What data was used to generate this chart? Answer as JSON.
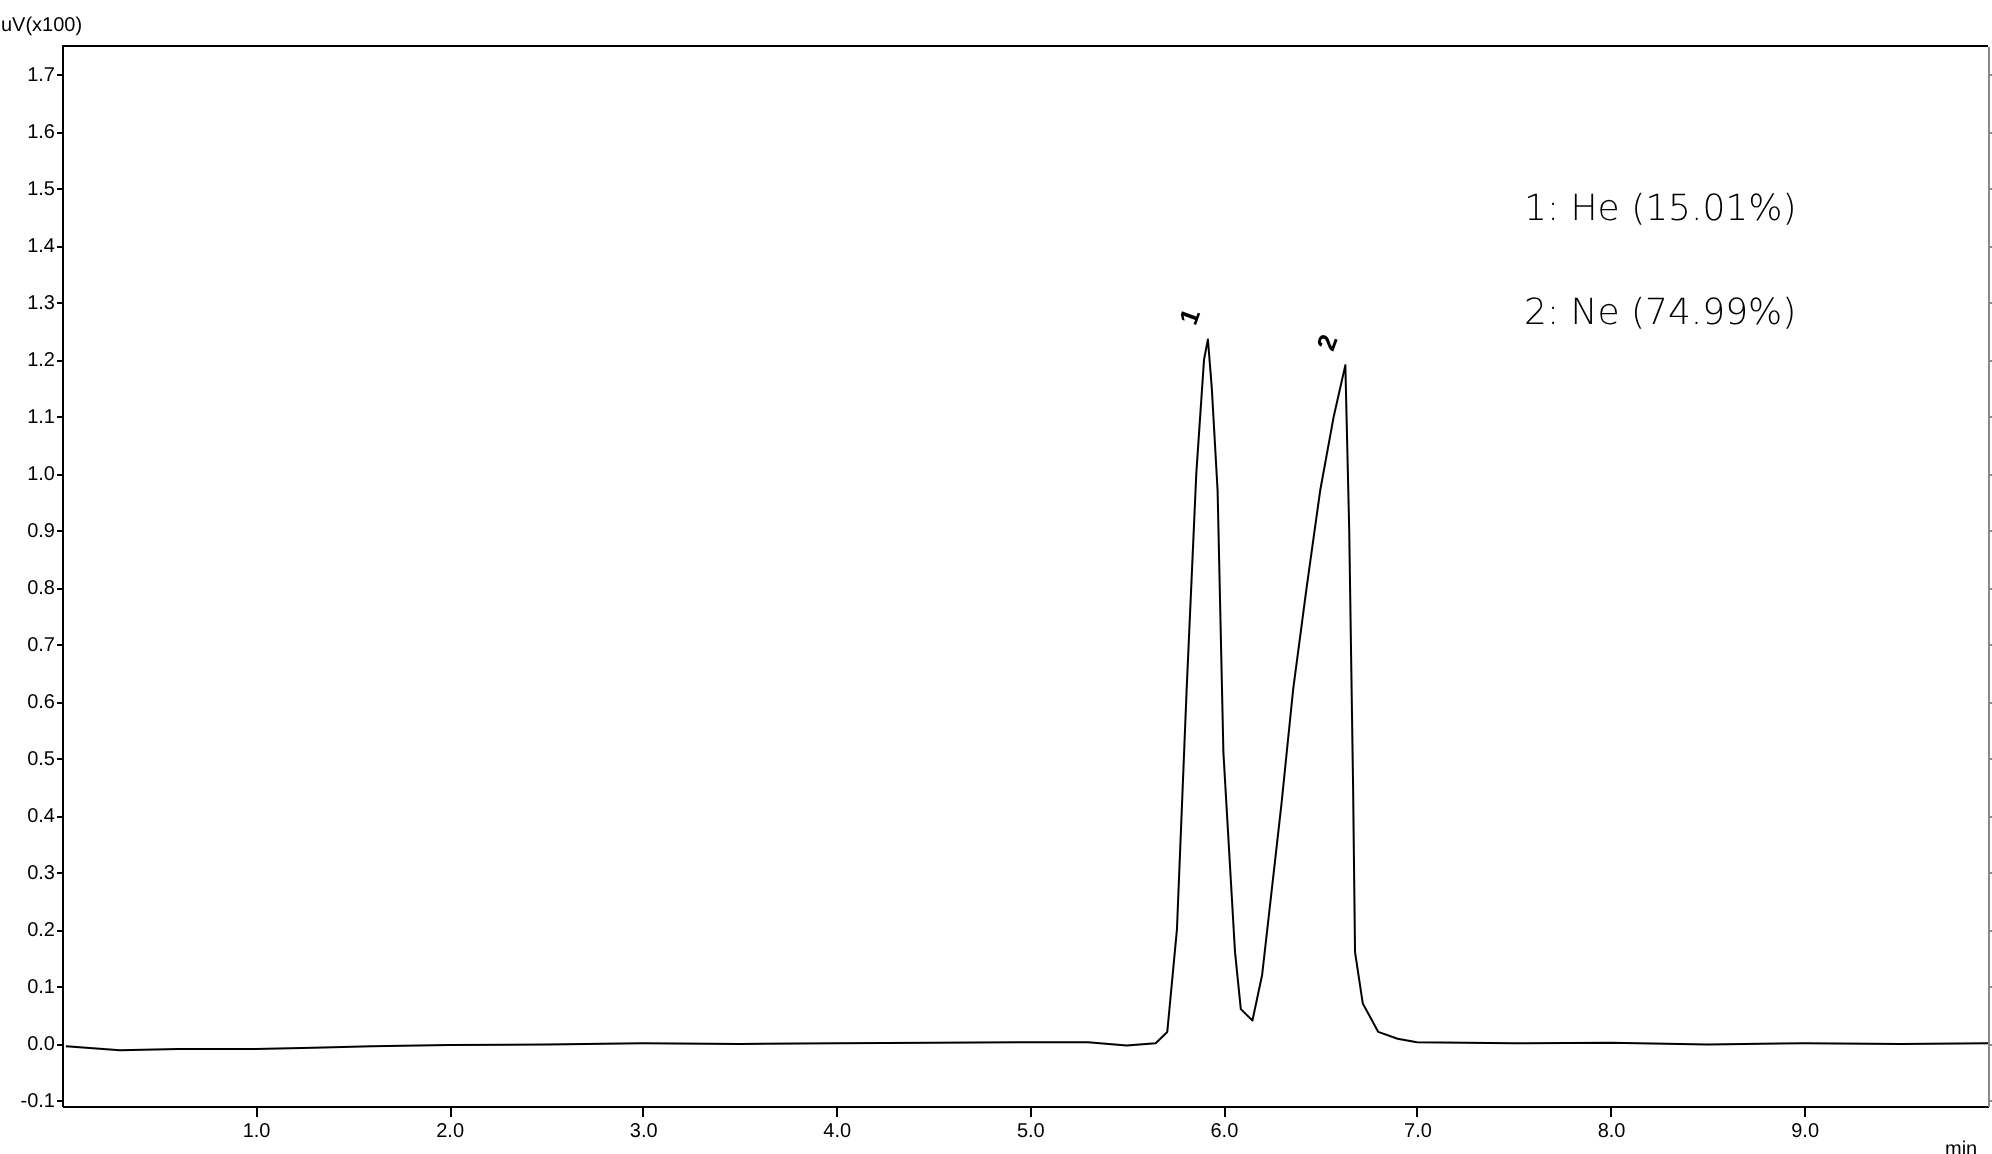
{
  "chart_data": {
    "type": "line",
    "xlabel": "min",
    "ylabel": "uV(x100)",
    "x": [
      0.02,
      0.3,
      0.6,
      1.0,
      1.3,
      1.6,
      2.0,
      2.5,
      3.0,
      3.5,
      4.0,
      4.5,
      5.0,
      5.3,
      5.5,
      5.65,
      5.71,
      5.76,
      5.81,
      5.86,
      5.9,
      5.92,
      5.94,
      5.97,
      6.0,
      6.06,
      6.09,
      6.15,
      6.2,
      6.3,
      6.36,
      6.43,
      6.5,
      6.57,
      6.63,
      6.65,
      6.67,
      6.68,
      6.72,
      6.8,
      6.9,
      7.0,
      7.5,
      8.0,
      8.5,
      9.0,
      9.5,
      9.95
    ],
    "series": [
      {
        "color": "#000000",
        "values": [
          -0.005,
          -0.012,
          -0.01,
          -0.01,
          -0.008,
          -0.005,
          -0.003,
          -0.002,
          0.0,
          -0.001,
          0.0,
          0.001,
          0.002,
          0.002,
          -0.004,
          0.0,
          0.02,
          0.2,
          0.62,
          1.0,
          1.2,
          1.235,
          1.15,
          0.97,
          0.51,
          0.16,
          0.06,
          0.04,
          0.12,
          0.42,
          0.62,
          0.8,
          0.97,
          1.1,
          1.19,
          0.9,
          0.45,
          0.16,
          0.07,
          0.02,
          0.008,
          0.002,
          0.0,
          0.001,
          -0.002,
          0.0,
          -0.001,
          0.0
        ]
      }
    ],
    "xlim": [
      0,
      9.95
    ],
    "ylim": [
      -0.11,
      1.75
    ],
    "xticks": [
      {
        "value": 1,
        "label": "1.0"
      },
      {
        "value": 2,
        "label": "2.0"
      },
      {
        "value": 3,
        "label": "3.0"
      },
      {
        "value": 4,
        "label": "4.0"
      },
      {
        "value": 5,
        "label": "5.0"
      },
      {
        "value": 6,
        "label": "6.0"
      },
      {
        "value": 7,
        "label": "7.0"
      },
      {
        "value": 8,
        "label": "8.0"
      },
      {
        "value": 9,
        "label": "9.0"
      }
    ],
    "yticks": [
      -0.1,
      {
        "value": 0,
        "label": "0.0"
      },
      0.1,
      0.2,
      0.3,
      0.4,
      0.5,
      0.6,
      0.7,
      0.8,
      0.9,
      {
        "value": 1,
        "label": "1.0"
      },
      1.1,
      1.2,
      1.3,
      1.4,
      1.5,
      1.6,
      1.7
    ],
    "annotations": [
      {
        "text": "1",
        "x": 5.92,
        "y": 1.235
      },
      {
        "text": "2",
        "x": 6.63,
        "y": 1.19
      },
      "1: He (15.01%)",
      "2: Ne (74.99%)"
    ],
    "grid": false,
    "marker": "none",
    "line_style": "solid"
  }
}
